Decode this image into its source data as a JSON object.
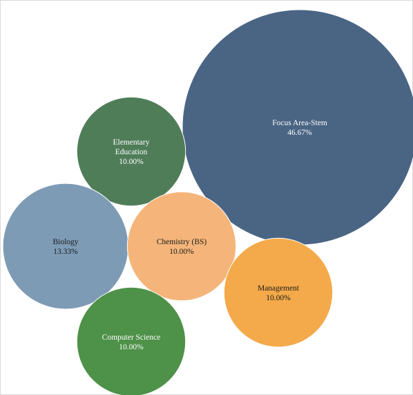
{
  "chart_data": {
    "type": "bubble",
    "title": "",
    "legend": "none",
    "items": [
      {
        "name": "Focus Area-Stem",
        "label": "Focus Area-Stem",
        "value": 46.67,
        "value_label": "46.67%",
        "color": "#4a6584",
        "text_color": "#ffffff"
      },
      {
        "name": "Elementary Education",
        "label_lines": [
          "Elementary",
          "Education"
        ],
        "value": 10.0,
        "value_label": "10.00%",
        "color": "#4f7d58",
        "text_color": "#ffffff"
      },
      {
        "name": "Biology",
        "label": "Biology",
        "value": 13.33,
        "value_label": "13.33%",
        "color": "#7e9bb6",
        "text_color": "#1a1a1a"
      },
      {
        "name": "Chemistry (BS)",
        "label": "Chemistry (BS)",
        "value": 10.0,
        "value_label": "10.00%",
        "color": "#f5b57a",
        "text_color": "#1a1a1a"
      },
      {
        "name": "Management",
        "label": "Management",
        "value": 10.0,
        "value_label": "10.00%",
        "color": "#f4aa4a",
        "text_color": "#1a1a1a"
      },
      {
        "name": "Computer Science",
        "label": "Computer Science",
        "value": 10.0,
        "value_label": "10.00%",
        "color": "#4e9148",
        "text_color": "#ffffff"
      }
    ]
  }
}
